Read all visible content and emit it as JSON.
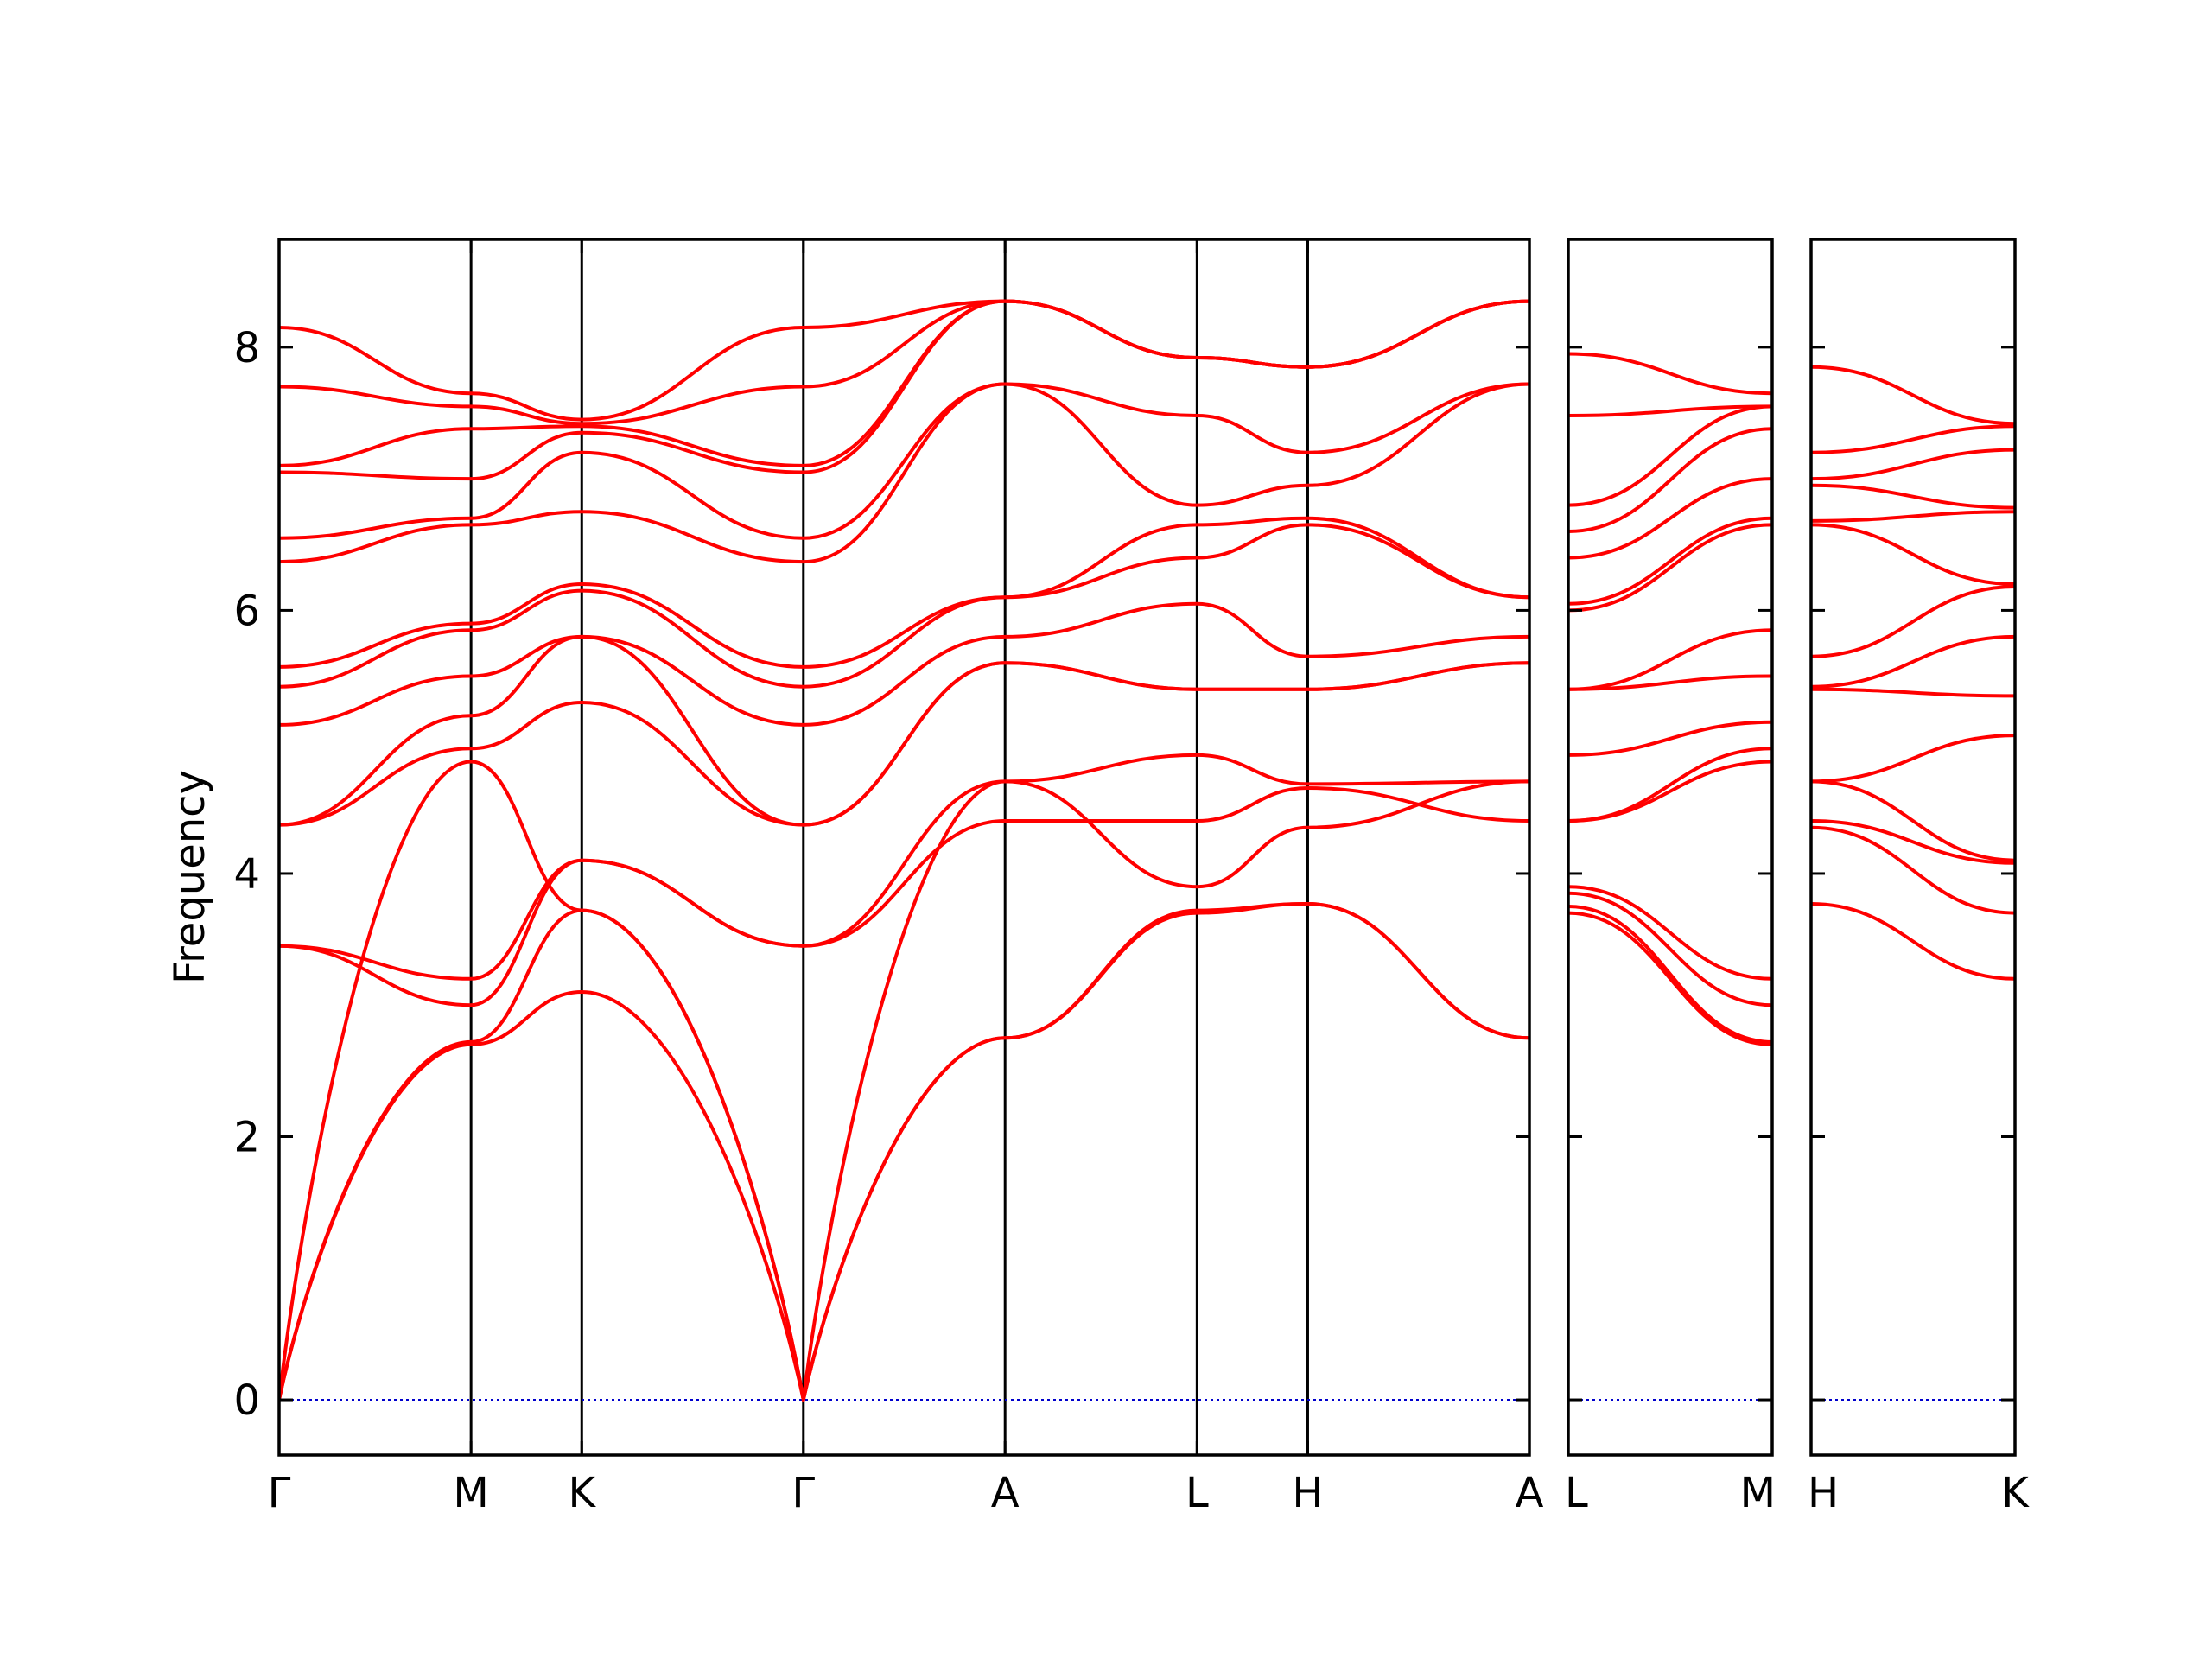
{
  "chart_data": {
    "type": "line",
    "ylabel": "Frequency",
    "ylim": [
      -0.42,
      8.82
    ],
    "yticks": [
      0,
      2,
      4,
      6,
      8
    ],
    "line_color": "#ff0000",
    "zero_line_color": "#0000cc",
    "panels": [
      {
        "name": "panel-1",
        "segments": [
          {
            "from": "Γ",
            "to": "M",
            "length": 0.73
          },
          {
            "from": "M",
            "to": "K",
            "length": 0.421
          },
          {
            "from": "K",
            "to": "Γ",
            "length": 0.843
          },
          {
            "from": "Γ",
            "to": "A",
            "length": 0.767
          },
          {
            "from": "A",
            "to": "L",
            "length": 0.73
          },
          {
            "from": "L",
            "to": "H",
            "length": 0.421
          },
          {
            "from": "H",
            "to": "A",
            "length": 0.843
          }
        ],
        "labels": [
          "Γ",
          "M",
          "K",
          "Γ",
          "A",
          "L",
          "H",
          "A"
        ],
        "bands": [
          {
            "name": "acoustic-1",
            "values": [
              [
                0,
                0.0,
                2.7,
                3.1,
                0.0,
                2.75,
                3.7,
                3.77,
                2.75
              ]
            ]
          },
          {
            "name": "acoustic-2",
            "values": [
              [
                0,
                0.0,
                2.72,
                3.72,
                0.0,
                2.75,
                3.72,
                3.77,
                2.75
              ]
            ]
          },
          {
            "name": "acoustic-3",
            "values": [
              [
                0,
                0.0,
                4.85,
                3.72,
                0.0,
                4.7,
                3.9,
                4.35,
                4.7
              ]
            ]
          },
          {
            "name": "optic-1",
            "values": [
              [
                0,
                3.45,
                3.0,
                4.1,
                3.45,
                4.7,
                4.9,
                4.68,
                4.7
              ]
            ]
          },
          {
            "name": "optic-2",
            "values": [
              [
                0,
                3.45,
                3.2,
                4.1,
                3.45,
                4.4,
                4.4,
                4.65,
                4.4
              ]
            ]
          },
          {
            "name": "optic-3",
            "values": [
              [
                0,
                4.37,
                4.95,
                5.3,
                4.37,
                5.6,
                5.4,
                5.4,
                5.6
              ]
            ]
          },
          {
            "name": "optic-4",
            "values": [
              [
                0,
                4.37,
                5.2,
                5.8,
                4.37,
                5.6,
                5.4,
                5.4,
                5.6
              ]
            ]
          },
          {
            "name": "optic-5",
            "values": [
              [
                0,
                5.13,
                5.5,
                5.8,
                5.13,
                5.8,
                6.05,
                5.65,
                5.8
              ]
            ]
          },
          {
            "name": "optic-6",
            "values": [
              [
                0,
                5.42,
                5.85,
                6.15,
                5.42,
                6.1,
                6.4,
                6.65,
                6.1
              ]
            ]
          },
          {
            "name": "optic-7",
            "values": [
              [
                0,
                5.57,
                5.9,
                6.2,
                5.57,
                6.1,
                6.65,
                6.7,
                6.1
              ]
            ]
          },
          {
            "name": "optic-8",
            "values": [
              [
                0,
                6.37,
                6.65,
                6.75,
                6.37,
                7.72,
                6.8,
                6.95,
                7.72
              ]
            ]
          },
          {
            "name": "optic-9",
            "values": [
              [
                0,
                6.55,
                6.7,
                7.2,
                6.55,
                7.72,
                7.48,
                7.2,
                7.72
              ]
            ]
          },
          {
            "name": "optic-10",
            "values": [
              [
                0,
                7.05,
                7.0,
                7.35,
                7.05,
                8.35,
                7.92,
                7.85,
                8.35
              ]
            ]
          },
          {
            "name": "optic-11",
            "values": [
              [
                0,
                7.1,
                7.38,
                7.4,
                7.1,
                8.35,
                7.92,
                7.85,
                8.35
              ]
            ]
          },
          {
            "name": "optic-12",
            "values": [
              [
                0,
                7.7,
                7.55,
                7.42,
                7.7,
                8.35,
                7.92,
                7.85,
                8.35
              ]
            ]
          },
          {
            "name": "optic-13",
            "values": [
              [
                0,
                8.15,
                7.65,
                7.45,
                8.15,
                8.35,
                7.92,
                7.85,
                8.35
              ]
            ]
          }
        ]
      },
      {
        "name": "panel-2",
        "segments": [
          {
            "from": "L",
            "to": "M",
            "length": 0.767
          }
        ],
        "labels": [
          "L",
          "M"
        ],
        "bands": [
          {
            "name": "acoustic-1",
            "values": [
              [
                0,
                3.7,
                2.7
              ]
            ]
          },
          {
            "name": "acoustic-2",
            "values": [
              [
                0,
                3.75,
                2.72
              ]
            ]
          },
          {
            "name": "acoustic-3",
            "values": [
              [
                0,
                3.85,
                3.0
              ]
            ]
          },
          {
            "name": "optic-1",
            "values": [
              [
                0,
                3.9,
                3.2
              ]
            ]
          },
          {
            "name": "optic-2",
            "values": [
              [
                0,
                4.4,
                4.85
              ]
            ]
          },
          {
            "name": "optic-3",
            "values": [
              [
                0,
                4.4,
                4.95
              ]
            ]
          },
          {
            "name": "optic-4",
            "values": [
              [
                0,
                4.9,
                5.15
              ]
            ]
          },
          {
            "name": "optic-5",
            "values": [
              [
                0,
                5.4,
                5.5
              ]
            ]
          },
          {
            "name": "optic-6",
            "values": [
              [
                0,
                5.4,
                5.85
              ]
            ]
          },
          {
            "name": "optic-7",
            "values": [
              [
                0,
                6.0,
                6.65
              ]
            ]
          },
          {
            "name": "optic-8",
            "values": [
              [
                0,
                6.05,
                6.7
              ]
            ]
          },
          {
            "name": "optic-9",
            "values": [
              [
                0,
                6.4,
                7.0
              ]
            ]
          },
          {
            "name": "optic-10",
            "values": [
              [
                0,
                6.6,
                7.38
              ]
            ]
          },
          {
            "name": "optic-11",
            "values": [
              [
                0,
                6.8,
                7.55
              ]
            ]
          },
          {
            "name": "optic-12",
            "values": [
              [
                0,
                7.48,
                7.55
              ]
            ]
          },
          {
            "name": "optic-13",
            "values": [
              [
                0,
                7.95,
                7.65
              ]
            ]
          }
        ]
      },
      {
        "name": "panel-3",
        "segments": [
          {
            "from": "H",
            "to": "K",
            "length": 0.767
          }
        ],
        "labels": [
          "H",
          "K"
        ],
        "bands": [
          {
            "name": "acoustic-1",
            "values": [
              [
                0,
                3.77,
                3.2
              ]
            ]
          },
          {
            "name": "acoustic-2",
            "values": [
              [
                0,
                4.35,
                3.7
              ]
            ]
          },
          {
            "name": "acoustic-3",
            "values": [
              [
                0,
                4.4,
                4.08
              ]
            ]
          },
          {
            "name": "optic-1",
            "values": [
              [
                0,
                4.7,
                4.1
              ]
            ]
          },
          {
            "name": "optic-2",
            "values": [
              [
                0,
                4.7,
                5.05
              ]
            ]
          },
          {
            "name": "optic-3",
            "values": [
              [
                0,
                5.4,
                5.35
              ]
            ]
          },
          {
            "name": "optic-4",
            "values": [
              [
                0,
                5.42,
                5.8
              ]
            ]
          },
          {
            "name": "optic-5",
            "values": [
              [
                0,
                5.65,
                6.18
              ]
            ]
          },
          {
            "name": "optic-6",
            "values": [
              [
                0,
                6.65,
                6.2
              ]
            ]
          },
          {
            "name": "optic-7",
            "values": [
              [
                0,
                6.68,
                6.75
              ]
            ]
          },
          {
            "name": "optic-8",
            "values": [
              [
                0,
                6.95,
                6.78
              ]
            ]
          },
          {
            "name": "optic-9",
            "values": [
              [
                0,
                7.0,
                7.22
              ]
            ]
          },
          {
            "name": "optic-10",
            "values": [
              [
                0,
                7.2,
                7.4
              ]
            ]
          },
          {
            "name": "optic-11",
            "values": [
              [
                0,
                7.85,
                7.42
              ]
            ]
          }
        ]
      }
    ]
  }
}
